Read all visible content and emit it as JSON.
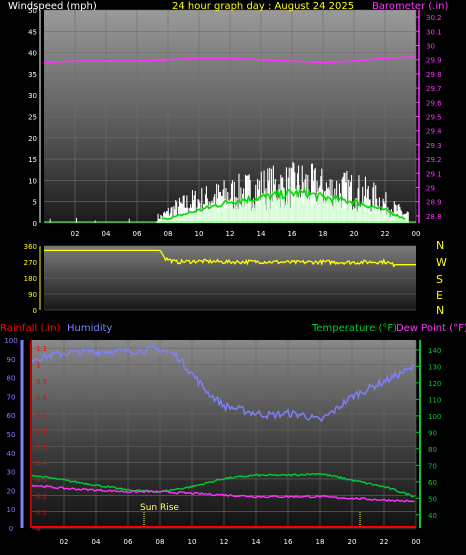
{
  "colors": {
    "background": "#000000",
    "axis": "#ffffff",
    "wind": "#ffffff",
    "wind_avg": "#00dd00",
    "wind_gust": "#ccffcc",
    "barometer": "#ff33ff",
    "direction": "#ffff00",
    "humidity": "#8080ff",
    "temperature": "#00cc33",
    "dewpoint": "#ff33ff",
    "rainfall": "#ff0000",
    "title": "#ffff00",
    "sunline": "#ffff66"
  },
  "header": {
    "wind_label": "Windspeed (mph)",
    "title": "24 hour graph day : August 24 2025",
    "baro_label": "Barometer (.in)"
  },
  "compass": {
    "n1": "N",
    "w": "W",
    "s": "S",
    "e": "E",
    "n2": "N"
  },
  "bottom_labels": {
    "rainfall": "Rainfall (.in)",
    "humidity": "Humidity",
    "temperature": "Temperature (°F)",
    "dewpoint": "Dew Point (°F)",
    "sunrise": "Sun Rise"
  },
  "chart_data": [
    {
      "type": "bar",
      "x_ticks": [
        "02",
        "04",
        "06",
        "08",
        "10",
        "12",
        "14",
        "16",
        "18",
        "20",
        "22",
        "00"
      ],
      "y_ticks": [
        "0",
        "5",
        "10",
        "15",
        "20",
        "25",
        "30",
        "35",
        "40",
        "45",
        "50"
      ],
      "ylim": [
        0,
        50
      ],
      "y2_ticks": [
        "28.8",
        "28.9",
        "29",
        "29.1",
        "29.2",
        "29.3",
        "29.4",
        "29.5",
        "29.6",
        "29.7",
        "29.8",
        "29.9",
        "30",
        "30.1",
        "30.2"
      ],
      "y2lim": [
        28.75,
        30.25
      ],
      "series": [
        {
          "name": "Windspeed (mph)",
          "note": "gust peaks",
          "hours": [
            7.5,
            8.5,
            9.5,
            10.5,
            11.5,
            12.5,
            13.5,
            14.5,
            15.5,
            16.5,
            17.5,
            18.5,
            19.5,
            20.5,
            21.5,
            22.5,
            23.3
          ],
          "values": [
            2,
            5,
            7,
            8,
            9,
            10,
            11,
            12,
            12,
            13,
            12,
            11,
            11,
            10,
            8,
            5,
            3
          ]
        },
        {
          "name": "Average",
          "hours": [
            8,
            10,
            12,
            14,
            16,
            17,
            18,
            20,
            22,
            23.3
          ],
          "values": [
            1,
            3,
            5,
            6,
            7,
            7,
            6,
            5,
            3,
            1
          ]
        },
        {
          "name": "Barometer (.in)",
          "hours": [
            0,
            2,
            4,
            6,
            8,
            10,
            12,
            14,
            16,
            18,
            20,
            22,
            24
          ],
          "values": [
            29.88,
            29.89,
            29.89,
            29.89,
            29.9,
            29.91,
            29.91,
            29.9,
            29.89,
            29.88,
            29.89,
            29.91,
            29.92
          ]
        }
      ]
    },
    {
      "type": "line",
      "y_ticks": [
        "0",
        "90",
        "180",
        "270",
        "360"
      ],
      "ylim": [
        0,
        360
      ],
      "series": [
        {
          "name": "Wind direction",
          "hours": [
            0,
            7.5,
            7.8,
            8.5,
            10,
            12,
            14,
            16,
            18,
            20,
            22,
            22.5,
            24
          ],
          "values": [
            335,
            335,
            290,
            270,
            275,
            270,
            272,
            268,
            270,
            268,
            272,
            255,
            255
          ]
        }
      ]
    },
    {
      "type": "line",
      "humidity_ticks": [
        "0",
        "10",
        "20",
        "30",
        "40",
        "50",
        "60",
        "70",
        "80",
        "90",
        "100"
      ],
      "humidity_lim": [
        0,
        100
      ],
      "rain_ticks": [
        "0",
        "0.1",
        "0.2",
        "0.3",
        "0.4",
        "0.5",
        "0.6",
        "0.7",
        "0.8",
        "0.9",
        "1",
        "1.1"
      ],
      "rain_lim": [
        0,
        1.15
      ],
      "temp_ticks": [
        "40",
        "50",
        "60",
        "70",
        "80",
        "90",
        "100",
        "110",
        "120",
        "130",
        "140"
      ],
      "temp_lim": [
        32,
        146
      ],
      "series": [
        {
          "name": "Humidity",
          "hours": [
            0,
            2,
            4,
            6,
            8,
            9,
            10,
            11,
            12,
            13,
            14,
            15,
            16,
            17,
            18,
            19,
            20,
            21,
            22,
            23,
            24
          ],
          "values": [
            90,
            93,
            94,
            94,
            95,
            92,
            82,
            72,
            65,
            63,
            61,
            60,
            61,
            60,
            57,
            63,
            70,
            74,
            78,
            82,
            86
          ]
        },
        {
          "name": "Temperature (°F)",
          "hours": [
            0,
            2,
            4,
            6,
            8,
            10,
            12,
            14,
            16,
            18,
            20,
            22,
            24
          ],
          "values": [
            64,
            61,
            58,
            55,
            54,
            57,
            62,
            64,
            64,
            65,
            61,
            57,
            51
          ]
        },
        {
          "name": "Dew Point (°F)",
          "hours": [
            0,
            2,
            4,
            6,
            8,
            10,
            12,
            14,
            16,
            18,
            20,
            22,
            24
          ],
          "values": [
            58,
            56,
            55,
            54,
            54,
            53,
            52,
            51,
            51,
            51,
            50,
            49,
            48
          ]
        },
        {
          "name": "Rainfall (.in)",
          "hours": [
            0,
            24
          ],
          "values": [
            0,
            0
          ]
        }
      ],
      "sunrise_hour": 7.0,
      "sunset_hour": 20.5
    }
  ]
}
